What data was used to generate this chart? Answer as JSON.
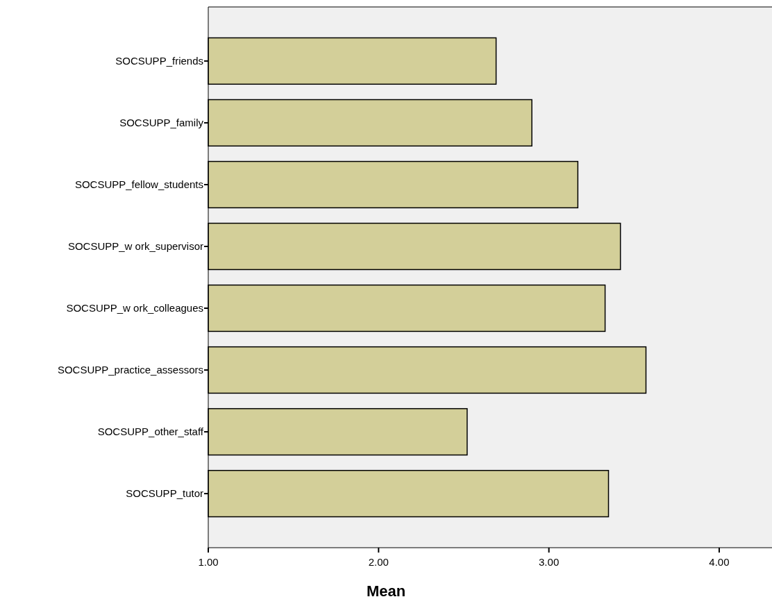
{
  "chart_data": {
    "type": "bar",
    "orientation": "horizontal",
    "xlabel": "Mean",
    "categories": [
      "SOCSUPP_friends",
      "SOCSUPP_family",
      "SOCSUPP_fellow_students",
      "SOCSUPP_w ork_supervisor",
      "SOCSUPP_w ork_colleagues",
      "SOCSUPP_practice_assessors",
      "SOCSUPP_other_staff",
      "SOCSUPP_tutor"
    ],
    "values": [
      2.69,
      2.9,
      3.17,
      3.42,
      3.33,
      3.57,
      2.52,
      3.35
    ],
    "color": "#d3cf99",
    "xlim": [
      1,
      4.31
    ],
    "xticks": [
      {
        "value": 1,
        "label": "1.00"
      },
      {
        "value": 2,
        "label": "2.00"
      },
      {
        "value": 3,
        "label": "3.00"
      },
      {
        "value": 4,
        "label": "4.00"
      }
    ],
    "grid": false
  }
}
